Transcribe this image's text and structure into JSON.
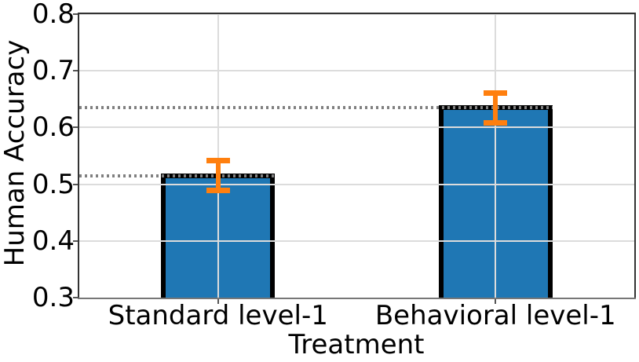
{
  "chart_data": {
    "type": "bar",
    "title": "",
    "xlabel": "Treatment",
    "ylabel": "Human Accuracy",
    "categories": [
      "Standard level-1",
      "Behavioral level-1"
    ],
    "values": [
      0.515,
      0.635
    ],
    "errors": [
      0.027,
      0.027
    ],
    "reference_lines": [
      0.515,
      0.635
    ],
    "ylim": [
      0.3,
      0.8
    ],
    "yticks": [
      0.3,
      0.4,
      0.5,
      0.6,
      0.7,
      0.8
    ],
    "grid": true,
    "legend": "none",
    "colors": {
      "bar_fill": "#1f77b4",
      "bar_edge": "#000000",
      "error_bar": "#ff7f0e",
      "reference_dotted": "#808080",
      "gridline": "#dcdcdc",
      "spine": "#333333",
      "tick_mark": "#555555",
      "text": "#000000",
      "background": "#ffffff"
    }
  }
}
